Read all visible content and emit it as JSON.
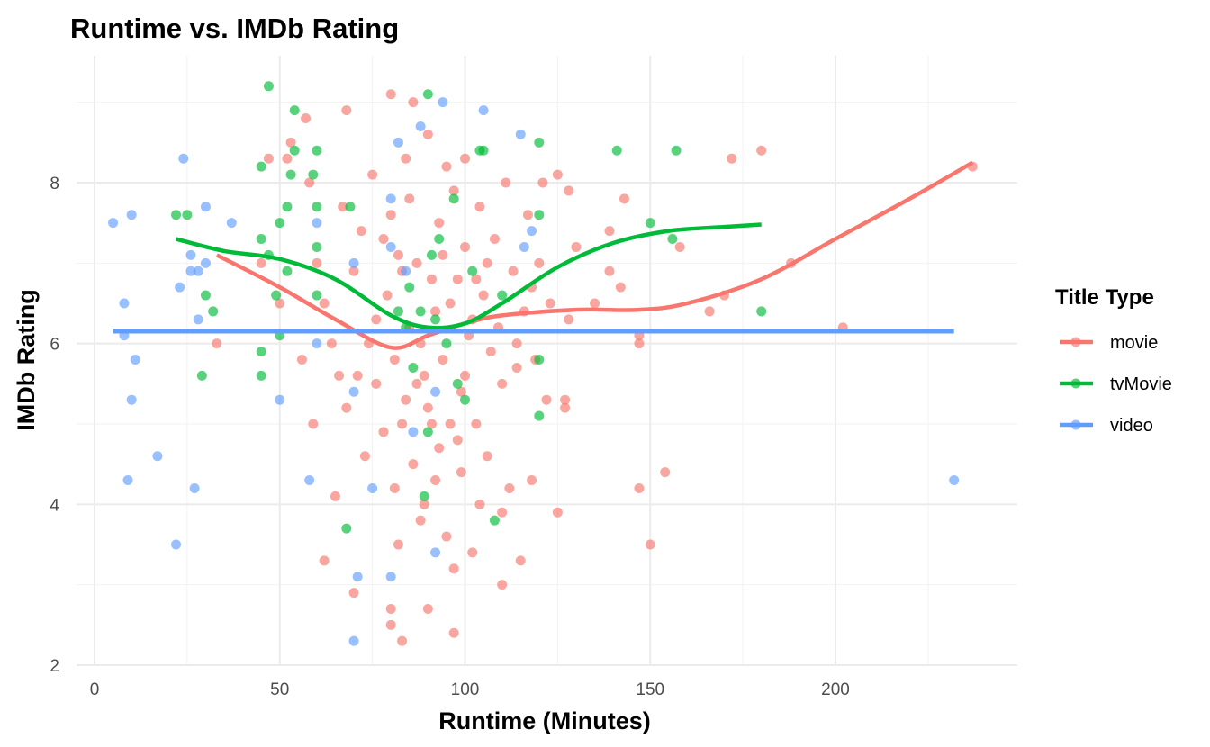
{
  "chart_data": {
    "type": "scatter",
    "title": "Runtime vs. IMDb Rating",
    "xlabel": "Runtime (Minutes)",
    "ylabel": "IMDb Rating",
    "xlim": [
      -5,
      248
    ],
    "ylim": [
      2,
      9.5
    ],
    "x_ticks": [
      0,
      50,
      100,
      150,
      200
    ],
    "y_ticks": [
      2,
      4,
      6,
      8
    ],
    "grid": true,
    "legend": {
      "title": "Title Type",
      "placement": "right",
      "entries": [
        "movie",
        "tvMovie",
        "video"
      ]
    },
    "series": [
      {
        "name": "movie",
        "color": "#F8766D",
        "points": [
          [
            237,
            8.2
          ],
          [
            180,
            8.4
          ],
          [
            172,
            8.3
          ],
          [
            188,
            7.0
          ],
          [
            202,
            6.2
          ],
          [
            170,
            6.6
          ],
          [
            166,
            6.4
          ],
          [
            154,
            4.4
          ],
          [
            147,
            4.2
          ],
          [
            150,
            3.5
          ],
          [
            158,
            7.2
          ],
          [
            147,
            6.1
          ],
          [
            147,
            6.0
          ],
          [
            143,
            7.8
          ],
          [
            142,
            6.7
          ],
          [
            139,
            6.9
          ],
          [
            139,
            7.4
          ],
          [
            128,
            7.9
          ],
          [
            125,
            8.1
          ],
          [
            125,
            3.9
          ],
          [
            127,
            5.3
          ],
          [
            127,
            5.2
          ],
          [
            33,
            6.0
          ],
          [
            80,
            9.1
          ],
          [
            68,
            8.9
          ],
          [
            57,
            8.8
          ],
          [
            53,
            8.5
          ],
          [
            62,
            3.3
          ],
          [
            70,
            2.9
          ],
          [
            80,
            2.7
          ],
          [
            80,
            2.5
          ],
          [
            83,
            2.3
          ],
          [
            90,
            2.7
          ],
          [
            97,
            2.4
          ],
          [
            110,
            3.0
          ],
          [
            65,
            4.1
          ],
          [
            73,
            4.6
          ],
          [
            110,
            3.9
          ],
          [
            47,
            8.3
          ],
          [
            52,
            8.3
          ],
          [
            58,
            8.0
          ],
          [
            60,
            7.0
          ],
          [
            62,
            6.5
          ],
          [
            64,
            6.0
          ],
          [
            66,
            5.6
          ],
          [
            68,
            5.2
          ],
          [
            70,
            6.9
          ],
          [
            72,
            7.4
          ],
          [
            75,
            8.1
          ],
          [
            76,
            5.5
          ],
          [
            78,
            4.9
          ],
          [
            79,
            6.6
          ],
          [
            80,
            7.6
          ],
          [
            81,
            4.2
          ],
          [
            82,
            3.5
          ],
          [
            83,
            5.0
          ],
          [
            84,
            8.3
          ],
          [
            85,
            6.2
          ],
          [
            86,
            4.5
          ],
          [
            87,
            7.0
          ],
          [
            88,
            3.8
          ],
          [
            89,
            5.6
          ],
          [
            90,
            8.6
          ],
          [
            91,
            6.8
          ],
          [
            92,
            4.3
          ],
          [
            93,
            7.5
          ],
          [
            94,
            5.8
          ],
          [
            95,
            3.6
          ],
          [
            96,
            6.5
          ],
          [
            97,
            7.9
          ],
          [
            98,
            4.8
          ],
          [
            99,
            5.4
          ],
          [
            100,
            7.2
          ],
          [
            101,
            6.1
          ],
          [
            102,
            3.4
          ],
          [
            103,
            5.0
          ],
          [
            104,
            7.7
          ],
          [
            105,
            6.6
          ],
          [
            106,
            4.6
          ],
          [
            107,
            5.9
          ],
          [
            108,
            7.3
          ],
          [
            109,
            6.2
          ],
          [
            110,
            5.5
          ],
          [
            111,
            8.0
          ],
          [
            112,
            4.2
          ],
          [
            113,
            6.9
          ],
          [
            114,
            5.7
          ],
          [
            115,
            3.3
          ],
          [
            116,
            6.4
          ],
          [
            117,
            7.6
          ],
          [
            118,
            4.3
          ],
          [
            119,
            5.8
          ],
          [
            120,
            7.0
          ],
          [
            122,
            5.3
          ],
          [
            123,
            6.5
          ],
          [
            85,
            7.8
          ],
          [
            88,
            6.0
          ],
          [
            90,
            5.2
          ],
          [
            92,
            6.4
          ],
          [
            94,
            7.1
          ],
          [
            96,
            5.0
          ],
          [
            98,
            6.8
          ],
          [
            100,
            5.6
          ],
          [
            102,
            6.3
          ],
          [
            104,
            4.0
          ],
          [
            95,
            8.2
          ],
          [
            87,
            5.5
          ],
          [
            83,
            6.9
          ],
          [
            81,
            5.8
          ],
          [
            78,
            7.3
          ],
          [
            74,
            6.0
          ],
          [
            86,
            9.0
          ],
          [
            93,
            4.7
          ],
          [
            97,
            3.2
          ],
          [
            89,
            4.0
          ],
          [
            82,
            7.1
          ],
          [
            100,
            8.3
          ],
          [
            106,
            7.0
          ],
          [
            91,
            5.0
          ],
          [
            99,
            4.4
          ],
          [
            103,
            6.8
          ],
          [
            84,
            5.3
          ],
          [
            76,
            6.3
          ],
          [
            71,
            5.6
          ],
          [
            67,
            7.7
          ],
          [
            56,
            5.8
          ],
          [
            59,
            5.0
          ],
          [
            45,
            7.0
          ],
          [
            50,
            6.5
          ],
          [
            114,
            6.0
          ],
          [
            118,
            6.7
          ],
          [
            121,
            8.0
          ],
          [
            130,
            7.2
          ],
          [
            135,
            6.5
          ],
          [
            128,
            6.3
          ]
        ]
      },
      {
        "name": "tvMovie",
        "color": "#00BA38",
        "points": [
          [
            47,
            9.2
          ],
          [
            54,
            8.9
          ],
          [
            90,
            9.1
          ],
          [
            45,
            8.2
          ],
          [
            59,
            8.1
          ],
          [
            53,
            8.1
          ],
          [
            54,
            8.4
          ],
          [
            60,
            8.4
          ],
          [
            22,
            7.6
          ],
          [
            25,
            7.6
          ],
          [
            52,
            7.7
          ],
          [
            50,
            7.5
          ],
          [
            60,
            7.7
          ],
          [
            60,
            7.2
          ],
          [
            45,
            7.3
          ],
          [
            47,
            7.1
          ],
          [
            52,
            6.9
          ],
          [
            49,
            6.6
          ],
          [
            60,
            6.6
          ],
          [
            30,
            6.6
          ],
          [
            32,
            6.4
          ],
          [
            29,
            5.6
          ],
          [
            45,
            5.9
          ],
          [
            45,
            5.6
          ],
          [
            50,
            6.1
          ],
          [
            68,
            3.7
          ],
          [
            69,
            7.7
          ],
          [
            105,
            8.4
          ],
          [
            120,
            8.5
          ],
          [
            120,
            7.6
          ],
          [
            141,
            8.4
          ],
          [
            157,
            8.4
          ],
          [
            150,
            7.5
          ],
          [
            156,
            7.3
          ],
          [
            180,
            6.4
          ],
          [
            120,
            5.8
          ],
          [
            120,
            5.1
          ],
          [
            108,
            3.8
          ],
          [
            89,
            4.1
          ],
          [
            90,
            4.9
          ],
          [
            85,
            6.7
          ],
          [
            88,
            6.4
          ],
          [
            91,
            7.1
          ],
          [
            95,
            6.0
          ],
          [
            98,
            5.5
          ],
          [
            102,
            6.9
          ],
          [
            86,
            5.7
          ],
          [
            93,
            7.3
          ],
          [
            100,
            5.3
          ],
          [
            84,
            6.2
          ],
          [
            110,
            6.6
          ],
          [
            104,
            8.4
          ],
          [
            97,
            7.8
          ],
          [
            82,
            6.4
          ],
          [
            92,
            6.3
          ]
        ]
      },
      {
        "name": "video",
        "color": "#619CFF",
        "points": [
          [
            5,
            7.5
          ],
          [
            10,
            7.6
          ],
          [
            8,
            6.5
          ],
          [
            8,
            6.1
          ],
          [
            11,
            5.8
          ],
          [
            10,
            5.3
          ],
          [
            9,
            4.3
          ],
          [
            17,
            4.6
          ],
          [
            22,
            3.5
          ],
          [
            27,
            4.2
          ],
          [
            24,
            8.3
          ],
          [
            26,
            7.1
          ],
          [
            26,
            6.9
          ],
          [
            23,
            6.7
          ],
          [
            28,
            6.3
          ],
          [
            30,
            7.0
          ],
          [
            30,
            7.7
          ],
          [
            37,
            7.5
          ],
          [
            28,
            6.9
          ],
          [
            50,
            5.3
          ],
          [
            60,
            6.0
          ],
          [
            60,
            7.5
          ],
          [
            58,
            4.3
          ],
          [
            70,
            2.3
          ],
          [
            71,
            3.1
          ],
          [
            80,
            3.1
          ],
          [
            75,
            4.2
          ],
          [
            70,
            5.4
          ],
          [
            70,
            7.0
          ],
          [
            94,
            9.0
          ],
          [
            105,
            8.9
          ],
          [
            115,
            8.6
          ],
          [
            92,
            3.4
          ],
          [
            80,
            7.8
          ],
          [
            82,
            8.5
          ],
          [
            88,
            8.7
          ],
          [
            232,
            4.3
          ],
          [
            116,
            7.2
          ],
          [
            118,
            7.4
          ],
          [
            84,
            6.9
          ],
          [
            80,
            7.2
          ],
          [
            86,
            4.9
          ],
          [
            92,
            5.4
          ]
        ]
      }
    ],
    "smooth_lines": [
      {
        "name": "movie",
        "color": "#F8766D",
        "points": [
          [
            33,
            7.1
          ],
          [
            50,
            6.7
          ],
          [
            65,
            6.3
          ],
          [
            80,
            5.95
          ],
          [
            90,
            6.1
          ],
          [
            100,
            6.25
          ],
          [
            110,
            6.35
          ],
          [
            130,
            6.42
          ],
          [
            147,
            6.42
          ],
          [
            160,
            6.5
          ],
          [
            180,
            6.8
          ],
          [
            200,
            7.3
          ],
          [
            220,
            7.8
          ],
          [
            237,
            8.25
          ]
        ]
      },
      {
        "name": "tvMovie",
        "color": "#00BA38",
        "points": [
          [
            22,
            7.3
          ],
          [
            35,
            7.15
          ],
          [
            50,
            7.05
          ],
          [
            65,
            6.8
          ],
          [
            80,
            6.35
          ],
          [
            90,
            6.2
          ],
          [
            100,
            6.25
          ],
          [
            110,
            6.5
          ],
          [
            125,
            6.95
          ],
          [
            140,
            7.25
          ],
          [
            155,
            7.4
          ],
          [
            170,
            7.45
          ],
          [
            180,
            7.48
          ]
        ]
      },
      {
        "name": "video",
        "color": "#619CFF",
        "points": [
          [
            5,
            6.15
          ],
          [
            232,
            6.15
          ]
        ]
      }
    ]
  }
}
